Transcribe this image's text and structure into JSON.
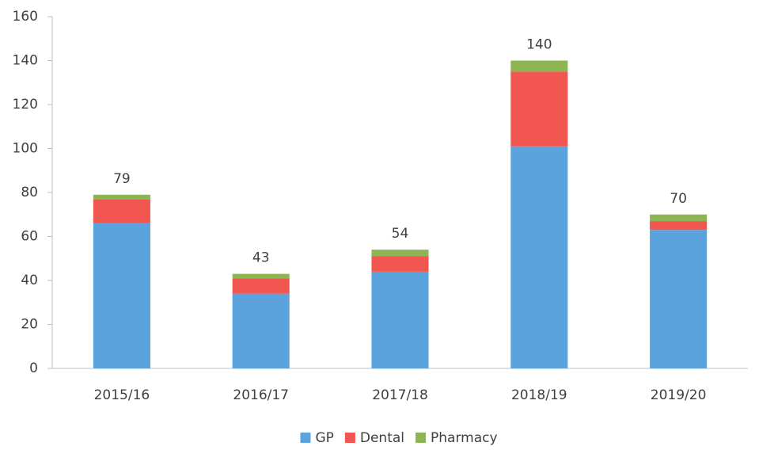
{
  "chart_data": {
    "type": "stacked_bar",
    "categories": [
      "2015/16",
      "2016/17",
      "2017/18",
      "2018/19",
      "2019/20"
    ],
    "series": [
      {
        "name": "GP",
        "color": "#5ba3dc",
        "values": [
          66,
          34,
          44,
          101,
          63
        ]
      },
      {
        "name": "Dental",
        "color": "#f25650",
        "values": [
          11,
          7,
          7,
          34,
          4
        ]
      },
      {
        "name": "Pharmacy",
        "color": "#8db552",
        "values": [
          2,
          2,
          3,
          5,
          3
        ]
      }
    ],
    "totals": [
      79,
      43,
      54,
      140,
      70
    ],
    "ylim": [
      0,
      160
    ],
    "yticks": [
      0,
      20,
      40,
      60,
      80,
      100,
      120,
      140,
      160
    ],
    "grid": false,
    "legend": "bottom"
  }
}
